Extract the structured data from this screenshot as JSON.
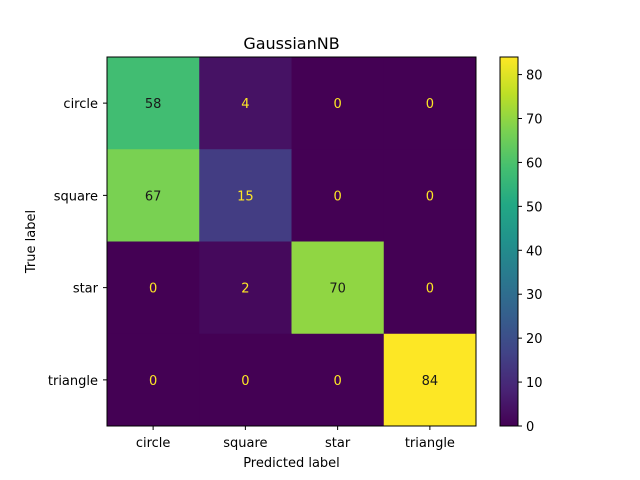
{
  "chart_data": {
    "type": "heatmap",
    "title": "GaussianNB",
    "xlabel": "Predicted label",
    "ylabel": "True label",
    "x_categories": [
      "circle",
      "square",
      "star",
      "triangle"
    ],
    "y_categories": [
      "circle",
      "square",
      "star",
      "triangle"
    ],
    "values": [
      [
        58,
        4,
        0,
        0
      ],
      [
        67,
        15,
        0,
        0
      ],
      [
        0,
        2,
        70,
        0
      ],
      [
        0,
        0,
        0,
        84
      ]
    ],
    "colormap": "viridis",
    "vmin": 0,
    "vmax": 84,
    "colorbar_ticks": [
      0,
      10,
      20,
      30,
      40,
      50,
      60,
      70,
      80
    ],
    "text_color_light": "#fde725",
    "text_color_dark": "#1a1a1a",
    "grid": false
  }
}
